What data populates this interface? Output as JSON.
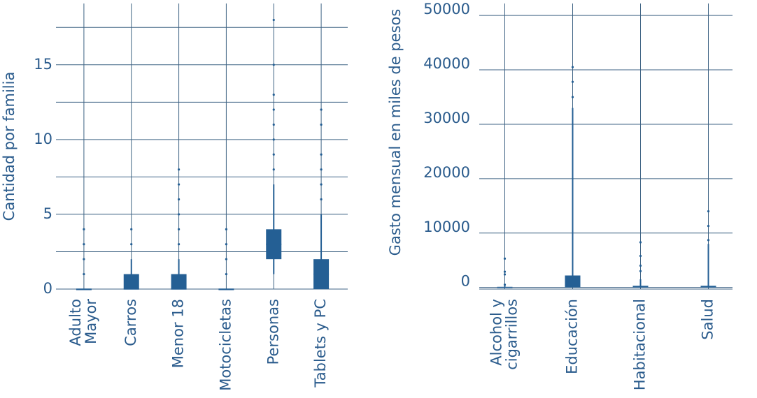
{
  "chart_data": [
    {
      "type": "box",
      "y_label": "Cantidad por familia",
      "color": "#245f94",
      "categories": [
        "Adulto\nMayor",
        "Carros",
        "Menor 18",
        "Motocicletas",
        "Personas",
        "Tablets y PC"
      ],
      "low": [
        0,
        0,
        0,
        0,
        1,
        0
      ],
      "q1": [
        0,
        0,
        0,
        0,
        2,
        0
      ],
      "median": [
        0,
        0,
        0,
        0,
        3,
        1
      ],
      "q3": [
        0,
        1,
        1,
        0,
        4,
        2
      ],
      "high": [
        0,
        2,
        2,
        0,
        7,
        5
      ],
      "outliers": [
        [
          1,
          2,
          3,
          4
        ],
        [
          3,
          4
        ],
        [
          3,
          4,
          5,
          6,
          7,
          8
        ],
        [
          1,
          2,
          3,
          4
        ],
        [
          8,
          9,
          10,
          11,
          12,
          13,
          15,
          18
        ],
        [
          6,
          7,
          8,
          9,
          11,
          12
        ]
      ],
      "ylim": [
        0,
        19.1
      ],
      "yticks": [
        0,
        5,
        10,
        15
      ],
      "minor_grid": [
        2.5,
        7.5,
        12.5,
        17.5
      ],
      "grid": true
    },
    {
      "type": "box",
      "y_label": "Gasto mensual en miles de pesos",
      "color": "#245f94",
      "categories": [
        "Alcohol y\ncigarrillos",
        "Educación",
        "Habitacional",
        "Salud"
      ],
      "low": [
        0,
        0,
        0,
        0
      ],
      "q1": [
        0,
        0,
        0,
        0
      ],
      "median": [
        0,
        500,
        100,
        100
      ],
      "q3": [
        100,
        2200,
        300,
        300
      ],
      "high": [
        300,
        33000,
        1500,
        8000
      ],
      "outliers": [
        [
          500,
          2400,
          2900,
          5300
        ],
        [
          35000,
          37800,
          40500
        ],
        [
          3000,
          4000,
          5800,
          8300
        ],
        [
          8700,
          11300,
          14000
        ]
      ],
      "ylim": [
        -300,
        52200
      ],
      "yticks": [
        0,
        10000,
        20000,
        30000,
        40000,
        50000
      ],
      "grid": true
    }
  ]
}
